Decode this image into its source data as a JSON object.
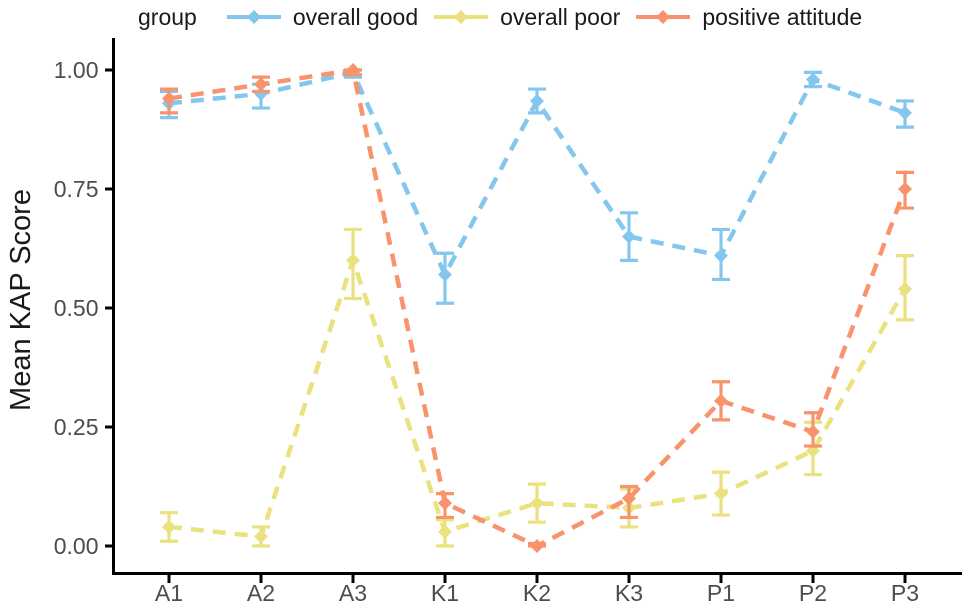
{
  "figure": {
    "background": "#ffffff",
    "text_color": "#1a1a1a",
    "tick_label_color": "#4d4d4d",
    "axis_color": "#000000"
  },
  "chart_data": {
    "type": "line",
    "title": "",
    "xlabel": "",
    "ylabel": "Mean KAP Score",
    "legend_title": "group",
    "legend_position": "top",
    "grid": false,
    "line_style": "dashed",
    "marker": "diamond",
    "error_bars": true,
    "categories": [
      "A1",
      "A2",
      "A3",
      "K1",
      "K2",
      "K3",
      "P1",
      "P2",
      "P3"
    ],
    "ylim": [
      0,
      1
    ],
    "yticks": [
      0,
      0.25,
      0.5,
      0.75,
      1
    ],
    "ytick_labels": [
      "0.00",
      "0.25",
      "0.50",
      "0.75",
      "1.00"
    ],
    "series": [
      {
        "name": "overall good",
        "color": "#84C7EE",
        "values": [
          0.93,
          0.95,
          0.995,
          0.57,
          0.935,
          0.65,
          0.61,
          0.98,
          0.91
        ],
        "err_low": [
          0.9,
          0.92,
          0.985,
          0.51,
          0.91,
          0.6,
          0.56,
          0.965,
          0.88
        ],
        "err_high": [
          0.955,
          0.97,
          1.0,
          0.615,
          0.96,
          0.7,
          0.665,
          0.995,
          0.935
        ]
      },
      {
        "name": "overall poor",
        "color": "#EAE27F",
        "values": [
          0.04,
          0.02,
          0.6,
          0.03,
          0.09,
          0.08,
          0.11,
          0.2,
          0.54
        ],
        "err_low": [
          0.01,
          0.0,
          0.52,
          0.0,
          0.05,
          0.04,
          0.065,
          0.15,
          0.475
        ],
        "err_high": [
          0.07,
          0.04,
          0.665,
          0.055,
          0.13,
          0.12,
          0.155,
          0.26,
          0.61
        ]
      },
      {
        "name": "positive attitude",
        "color": "#F8936C",
        "values": [
          0.94,
          0.97,
          1.0,
          0.09,
          0.0,
          0.1,
          0.305,
          0.24,
          0.75
        ],
        "err_low": [
          0.91,
          0.955,
          0.99,
          0.06,
          0.0,
          0.06,
          0.265,
          0.21,
          0.71
        ],
        "err_high": [
          0.96,
          0.985,
          1.0,
          0.11,
          0.005,
          0.125,
          0.345,
          0.28,
          0.785
        ]
      }
    ]
  }
}
